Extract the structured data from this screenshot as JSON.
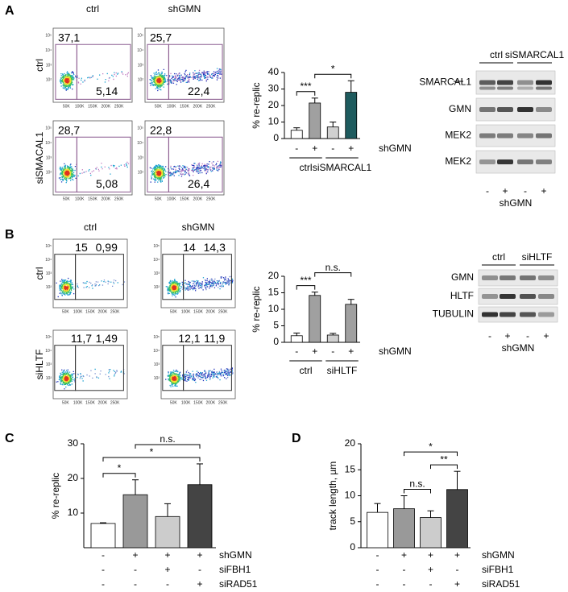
{
  "panel_labels": [
    "A",
    "B",
    "C",
    "D"
  ],
  "flow_a": {
    "columns": [
      "ctrl",
      "shGMN"
    ],
    "rows": [
      "ctrl",
      "siSMACAL1"
    ],
    "gates": [
      [
        "37,1",
        "5,14"
      ],
      [
        "25,7",
        "22,4"
      ],
      [
        "28,7",
        "5,08"
      ],
      [
        "22,8",
        "26,4"
      ]
    ],
    "xticks": [
      "50K",
      "100K",
      "150K",
      "200K",
      "250K"
    ],
    "yticks": [
      "10⁵",
      "10⁴",
      "10³",
      "10²"
    ]
  },
  "flow_b": {
    "columns": [
      "ctrl",
      "shGMN"
    ],
    "rows": [
      "ctrl",
      "siHLTF"
    ],
    "gates": [
      [
        "15",
        "0,99"
      ],
      [
        "14",
        "14,3"
      ],
      [
        "11,7",
        "1,49"
      ],
      [
        "12,1",
        "11,9"
      ]
    ],
    "xticks": [
      "50K",
      "100K",
      "150K",
      "200K",
      "250K"
    ],
    "yticks": [
      "10⁵",
      "10⁴",
      "10³",
      "10²"
    ]
  },
  "blot_a": {
    "groups": [
      "ctrl",
      "siSMARCAL1"
    ],
    "rows": [
      "SMARCAL1",
      "GMN",
      "MEK2",
      "MEK2"
    ],
    "label_colors": [
      "#000000",
      "#2a6f9a",
      "#000000",
      "#2a6f9a"
    ],
    "signs": [
      "-",
      "+",
      "-",
      "+"
    ],
    "treatment": "shGMN"
  },
  "blot_b": {
    "groups": [
      "ctrl",
      "siHLTF"
    ],
    "rows": [
      "GMN",
      "HLTF",
      "TUBULIN"
    ],
    "label_colors": [
      "#000000",
      "#000000",
      "#000000"
    ],
    "signs": [
      "-",
      "+",
      "-",
      "+"
    ],
    "treatment": "shGMN"
  },
  "chart_data": [
    {
      "type": "bar",
      "y_label": "% re-replic",
      "values": [
        5,
        21.5,
        7,
        28
      ],
      "errors": [
        1.5,
        3,
        3,
        7
      ],
      "colors": [
        "#ffffff",
        "#a0a0a0",
        "#d0d0d0",
        "#1e5b5e"
      ],
      "ylim": [
        0,
        40
      ],
      "yticks": [
        0,
        10,
        20,
        30,
        40
      ],
      "conditions": [
        {
          "name": "shGMN",
          "values": [
            "-",
            "+",
            "-",
            "+"
          ]
        }
      ],
      "groups": [
        {
          "label": "ctrl",
          "members": [
            0,
            1
          ]
        },
        {
          "label": "siSMARCAL1",
          "members": [
            2,
            3
          ]
        }
      ],
      "annotations": [
        {
          "text": "***",
          "between": [
            0,
            1
          ]
        },
        {
          "text": "*",
          "between": [
            1,
            3
          ]
        }
      ]
    },
    {
      "type": "bar",
      "y_label": "% re-replic",
      "values": [
        2,
        14.2,
        2.2,
        11.5
      ],
      "errors": [
        0.8,
        1,
        0.5,
        1.5
      ],
      "colors": [
        "#ffffff",
        "#a0a0a0",
        "#d0d0d0",
        "#a0a0a0"
      ],
      "ylim": [
        0,
        20
      ],
      "yticks": [
        0,
        5,
        10,
        15,
        20
      ],
      "conditions": [
        {
          "name": "shGMN",
          "values": [
            "-",
            "+",
            "-",
            "+"
          ]
        }
      ],
      "groups": [
        {
          "label": "ctrl",
          "members": [
            0,
            1
          ]
        },
        {
          "label": "siHLTF",
          "members": [
            2,
            3
          ]
        }
      ],
      "annotations": [
        {
          "text": "***",
          "between": [
            0,
            1
          ]
        },
        {
          "text": "n.s.",
          "between": [
            1,
            3
          ]
        }
      ]
    },
    {
      "type": "bar",
      "y_label": "% re-replic",
      "values": [
        7,
        15.3,
        9,
        18.2
      ],
      "errors": [
        0.2,
        4.3,
        3.7,
        6
      ],
      "colors": [
        "#ffffff",
        "#999999",
        "#cccccc",
        "#444444"
      ],
      "ylim": [
        0,
        30
      ],
      "yticks": [
        10,
        20,
        30
      ],
      "conditions": [
        {
          "name": "shGMN",
          "values": [
            "-",
            "+",
            "+",
            "+"
          ]
        },
        {
          "name": "siFBH1",
          "values": [
            "-",
            "-",
            "+",
            "-"
          ]
        },
        {
          "name": "siRAD51",
          "values": [
            "-",
            "-",
            "-",
            "+"
          ]
        }
      ],
      "annotations": [
        {
          "text": "*",
          "between": [
            0,
            1
          ]
        },
        {
          "text": "*",
          "between": [
            0,
            3
          ]
        },
        {
          "text": "n.s.",
          "between": [
            1,
            3
          ]
        }
      ]
    },
    {
      "type": "bar",
      "y_label": "track length, µm",
      "values": [
        6.8,
        7.5,
        5.8,
        11.2
      ],
      "errors": [
        1.7,
        2.5,
        1.3,
        3.5
      ],
      "colors": [
        "#ffffff",
        "#999999",
        "#cccccc",
        "#444444"
      ],
      "ylim": [
        0,
        20
      ],
      "yticks": [
        0,
        5,
        10,
        15,
        20
      ],
      "conditions": [
        {
          "name": "shGMN",
          "values": [
            "-",
            "+",
            "+",
            "+"
          ]
        },
        {
          "name": "siFBH1",
          "values": [
            "-",
            "-",
            "+",
            "-"
          ]
        },
        {
          "name": "siRAD51",
          "values": [
            "-",
            "-",
            "-",
            "+"
          ]
        }
      ],
      "annotations": [
        {
          "text": "n.s.",
          "between": [
            1,
            2
          ]
        },
        {
          "text": "**",
          "between": [
            2,
            3
          ]
        },
        {
          "text": "*",
          "between": [
            1,
            3
          ]
        }
      ]
    }
  ]
}
